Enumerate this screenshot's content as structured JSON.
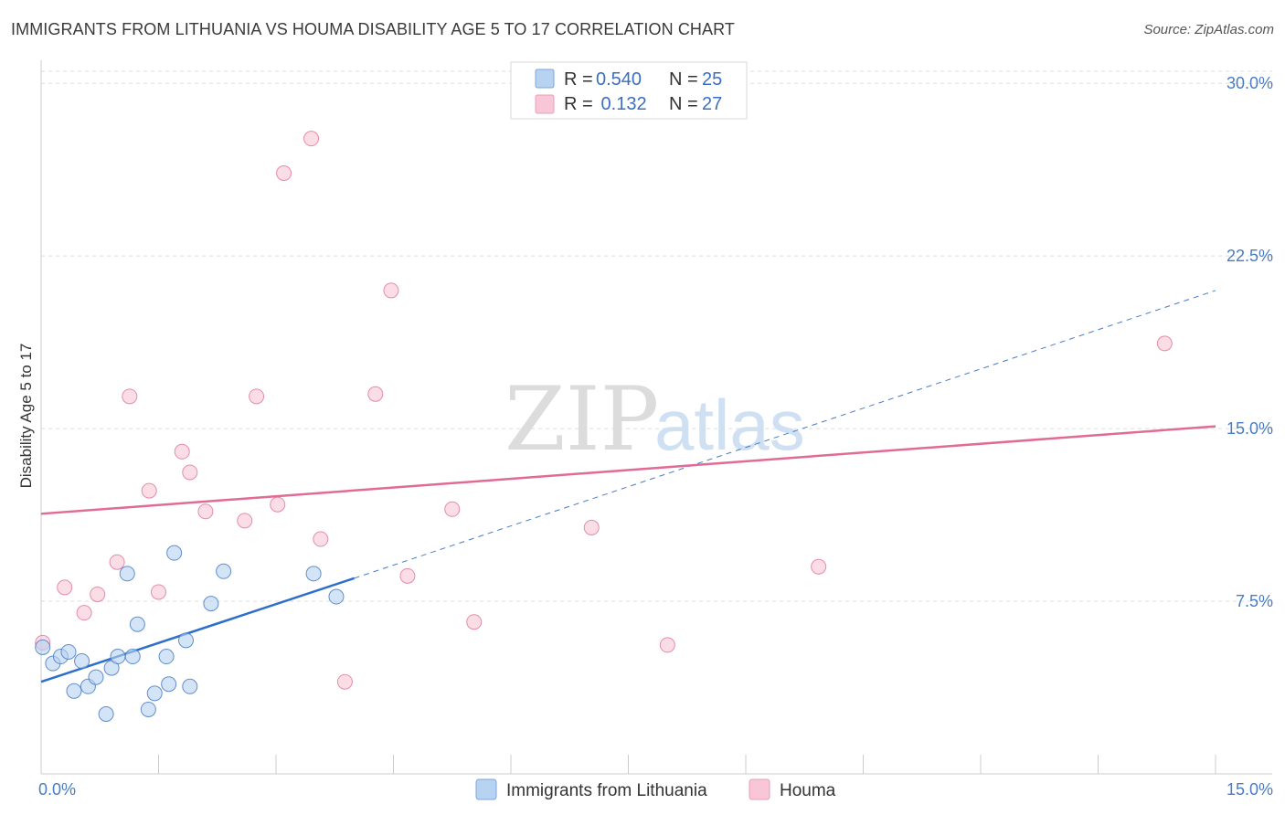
{
  "chart_data": {
    "type": "scatter",
    "title": "IMMIGRANTS FROM LITHUANIA VS HOUMA DISABILITY AGE 5 TO 17 CORRELATION CHART",
    "source": "Source: ZipAtlas.com",
    "xlabel": "",
    "ylabel": "Disability Age 5 to 17",
    "xlim": [
      0,
      15
    ],
    "ylim": [
      0,
      31
    ],
    "x_tick_labels": [
      {
        "value": 0,
        "label": "0.0%"
      },
      {
        "value": 15,
        "label": "15.0%"
      }
    ],
    "y_tick_labels": [
      {
        "value": 7.5,
        "label": "7.5%"
      },
      {
        "value": 15,
        "label": "15.0%"
      },
      {
        "value": 22.5,
        "label": "22.5%"
      },
      {
        "value": 30,
        "label": "30.0%"
      }
    ],
    "grid": true,
    "watermark": {
      "zip": "ZIP",
      "atlas": "atlas"
    },
    "legend": {
      "placement": "top-center",
      "entries": [
        {
          "r_label": "R =",
          "r_value": "0.540",
          "n_label": "N =",
          "n_value": "25"
        },
        {
          "r_label": "R =",
          "r_value": " 0.132",
          "n_label": "N =",
          "n_value": "27"
        }
      ]
    },
    "series": [
      {
        "name": "Immigrants from Lithuania",
        "color": "#4a7cc4",
        "fill": "#b8d2f2",
        "points": [
          [
            0.02,
            5.5
          ],
          [
            0.15,
            4.8
          ],
          [
            0.25,
            5.1
          ],
          [
            0.35,
            5.3
          ],
          [
            0.42,
            3.6
          ],
          [
            0.52,
            4.9
          ],
          [
            0.6,
            3.8
          ],
          [
            0.7,
            4.2
          ],
          [
            0.83,
            2.6
          ],
          [
            0.9,
            4.6
          ],
          [
            0.98,
            5.1
          ],
          [
            1.1,
            8.7
          ],
          [
            1.17,
            5.1
          ],
          [
            1.23,
            6.5
          ],
          [
            1.37,
            2.8
          ],
          [
            1.45,
            3.5
          ],
          [
            1.6,
            5.1
          ],
          [
            1.63,
            3.9
          ],
          [
            1.7,
            9.6
          ],
          [
            1.85,
            5.8
          ],
          [
            1.9,
            3.8
          ],
          [
            2.17,
            7.4
          ],
          [
            2.33,
            8.8
          ],
          [
            3.48,
            8.7
          ],
          [
            3.77,
            7.7
          ]
        ],
        "trend": {
          "x0": 0,
          "y0": 4.0,
          "x1": 4.0,
          "y1": 8.5,
          "x_ext": 15,
          "y_ext": 21.0
        }
      },
      {
        "name": "Houma",
        "color": "#e07aa0",
        "fill": "#f8c6d6",
        "points": [
          [
            0.02,
            5.7
          ],
          [
            0.3,
            8.1
          ],
          [
            0.55,
            7.0
          ],
          [
            0.72,
            7.8
          ],
          [
            0.97,
            9.2
          ],
          [
            1.13,
            16.4
          ],
          [
            1.38,
            12.3
          ],
          [
            1.5,
            7.9
          ],
          [
            1.8,
            14.0
          ],
          [
            1.9,
            13.1
          ],
          [
            2.1,
            11.4
          ],
          [
            2.6,
            11.0
          ],
          [
            2.75,
            16.4
          ],
          [
            3.02,
            11.7
          ],
          [
            3.1,
            26.1
          ],
          [
            3.45,
            27.6
          ],
          [
            3.57,
            10.2
          ],
          [
            3.88,
            4.0
          ],
          [
            4.27,
            16.5
          ],
          [
            4.47,
            21.0
          ],
          [
            4.68,
            8.6
          ],
          [
            5.25,
            11.5
          ],
          [
            5.53,
            6.6
          ],
          [
            7.03,
            10.7
          ],
          [
            8.0,
            5.6
          ],
          [
            9.93,
            9.0
          ],
          [
            14.35,
            18.7
          ]
        ],
        "trend": {
          "x0": 0,
          "y0": 11.3,
          "x1": 15,
          "y1": 15.1
        }
      }
    ]
  }
}
